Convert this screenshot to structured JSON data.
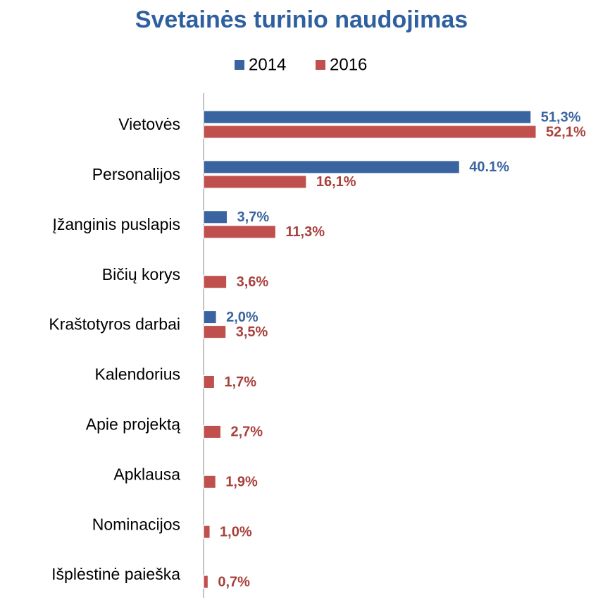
{
  "chart_data": {
    "type": "bar",
    "orientation": "horizontal",
    "title": "Svetainės turinio naudojimas",
    "categories": [
      "Vietovės",
      "Personalijos",
      "Įžanginis puslapis",
      "Bičių korys",
      "Kraštotyros darbai",
      "Kalendorius",
      "Apie projektą",
      "Apklausa",
      "Nominacijos",
      "Išplėstinė paieška"
    ],
    "series": [
      {
        "name": "2014",
        "color": "#3a64a0",
        "values": [
          51.3,
          40.1,
          3.7,
          null,
          2.0,
          null,
          null,
          null,
          null,
          null
        ],
        "value_labels": [
          "51,3%",
          "40.1%",
          "3,7%",
          null,
          "2,0%",
          null,
          null,
          null,
          null,
          null
        ]
      },
      {
        "name": "2016",
        "color": "#c0504d",
        "values": [
          52.1,
          16.1,
          11.3,
          3.6,
          3.5,
          1.7,
          2.7,
          1.9,
          1.0,
          0.7
        ],
        "value_labels": [
          "52,1%",
          "16,1%",
          "11,3%",
          "3,6%",
          "3,5%",
          "1,7%",
          "2,7%",
          "1,9%",
          "1,0%",
          "0,7%"
        ]
      }
    ],
    "legend": "top"
  }
}
